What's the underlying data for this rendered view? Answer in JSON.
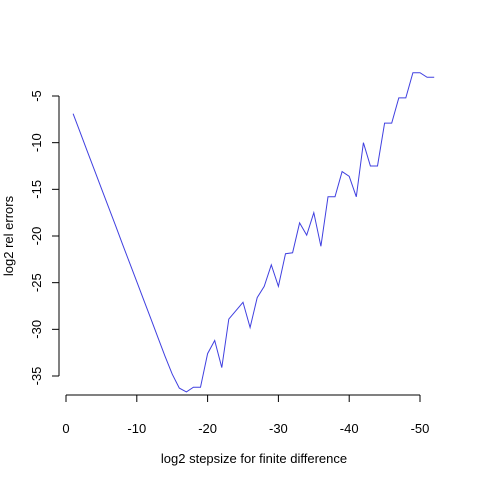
{
  "chart_data": {
    "type": "line",
    "title": "",
    "xlabel": "log2 stepsize for finite difference",
    "ylabel": "log2 rel errors",
    "x_reversed": true,
    "xlim": [
      0,
      -52
    ],
    "ylim": [
      -37,
      -2.5
    ],
    "x_ticks": [
      0,
      -10,
      -20,
      -30,
      -40,
      -50
    ],
    "x_tick_labels": [
      "0",
      "-10",
      "-20",
      "-30",
      "-40",
      "-50"
    ],
    "y_ticks": [
      -35,
      -30,
      -25,
      -20,
      -15,
      -10,
      -5
    ],
    "y_tick_labels": [
      "-35",
      "-30",
      "-25",
      "-20",
      "-15",
      "-10",
      "-5"
    ],
    "grid": false,
    "series": [
      {
        "color": "#4040e0",
        "x": [
          -1,
          -2,
          -3,
          -4,
          -5,
          -6,
          -7,
          -8,
          -9,
          -10,
          -11,
          -12,
          -13,
          -14,
          -15,
          -16,
          -17,
          -18,
          -19,
          -20,
          -21,
          -22,
          -23,
          -24,
          -25,
          -26,
          -27,
          -28,
          -29,
          -30,
          -31,
          -32,
          -33,
          -34,
          -35,
          -36,
          -37,
          -38,
          -39,
          -40,
          -41,
          -42,
          -43,
          -44,
          -45,
          -46,
          -47,
          -48,
          -49,
          -50,
          -51,
          -52
        ],
        "y": [
          -6.9,
          -8.9,
          -10.9,
          -12.9,
          -14.9,
          -16.9,
          -18.9,
          -20.9,
          -22.9,
          -24.9,
          -26.9,
          -28.9,
          -30.9,
          -32.9,
          -34.8,
          -36.3,
          -36.7,
          -36.2,
          -36.2,
          -32.6,
          -31.2,
          -34.1,
          -28.9,
          -28,
          -27.1,
          -29.8,
          -26.6,
          -25.4,
          -23.1,
          -25.4,
          -21.9,
          -21.8,
          -18.6,
          -19.9,
          -17.5,
          -21.1,
          -15.8,
          -15.8,
          -13.1,
          -13.6,
          -15.8,
          -10,
          -12.5,
          -12.5,
          -7.9,
          -7.9,
          -5.2,
          -5.2,
          -2.5,
          -2.5,
          -3,
          -3
        ]
      }
    ]
  }
}
